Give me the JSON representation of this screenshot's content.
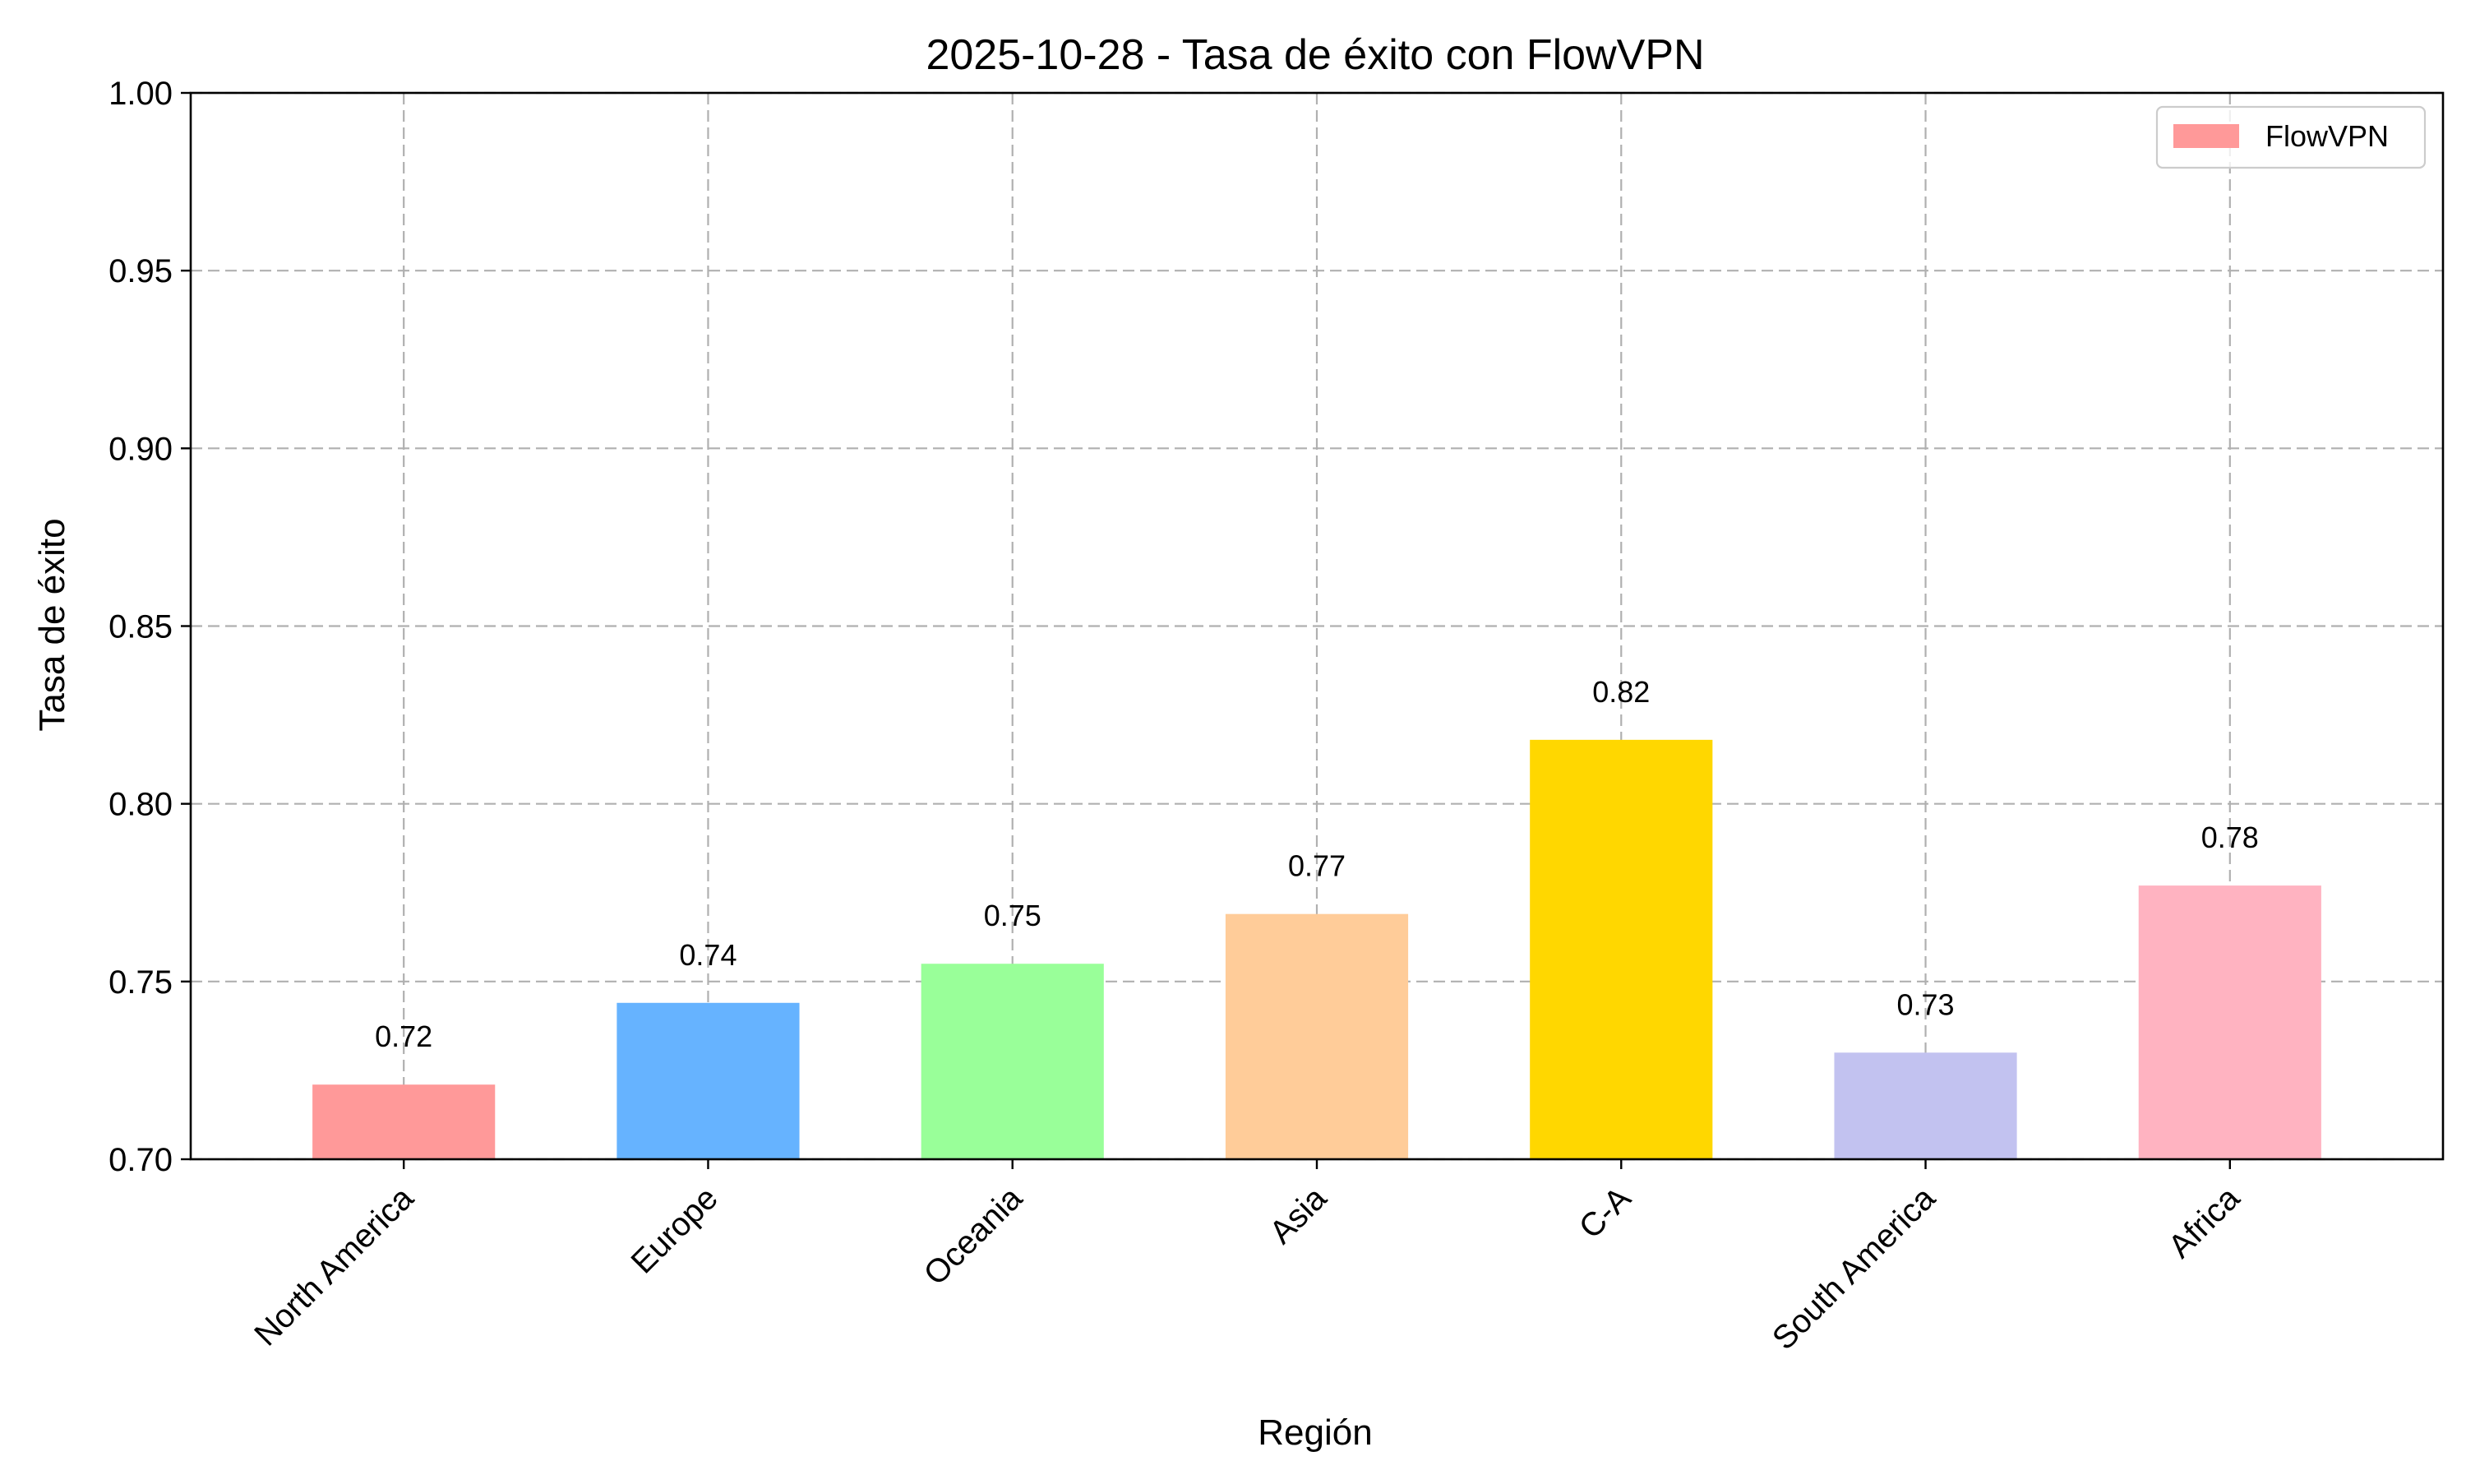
{
  "chart_data": {
    "type": "bar",
    "title": "2025-10-28 - Tasa de éxito con FlowVPN",
    "xlabel": "Región",
    "ylabel": "Tasa de éxito",
    "categories": [
      "North America",
      "Europe",
      "Oceania",
      "Asia",
      "C-A",
      "South America",
      "Africa"
    ],
    "values": [
      0.721,
      0.744,
      0.755,
      0.769,
      0.818,
      0.73,
      0.777
    ],
    "value_labels": [
      "0.72",
      "0.74",
      "0.75",
      "0.77",
      "0.82",
      "0.73",
      "0.78"
    ],
    "bar_colors": [
      "#ff9999",
      "#66b3ff",
      "#99ff99",
      "#ffcc99",
      "#ffd700",
      "#c2c2f0",
      "#ffb3c1"
    ],
    "ylim": [
      0.7,
      1.0
    ],
    "yticks": [
      0.7,
      0.75,
      0.8,
      0.85,
      0.9,
      0.95,
      1.0
    ],
    "ytick_labels": [
      "0.70",
      "0.75",
      "0.80",
      "0.85",
      "0.90",
      "0.95",
      "1.00"
    ],
    "grid": true,
    "legend": {
      "position": "top-right",
      "entries": [
        {
          "name": "FlowVPN",
          "color": "#ff9999"
        }
      ]
    }
  }
}
